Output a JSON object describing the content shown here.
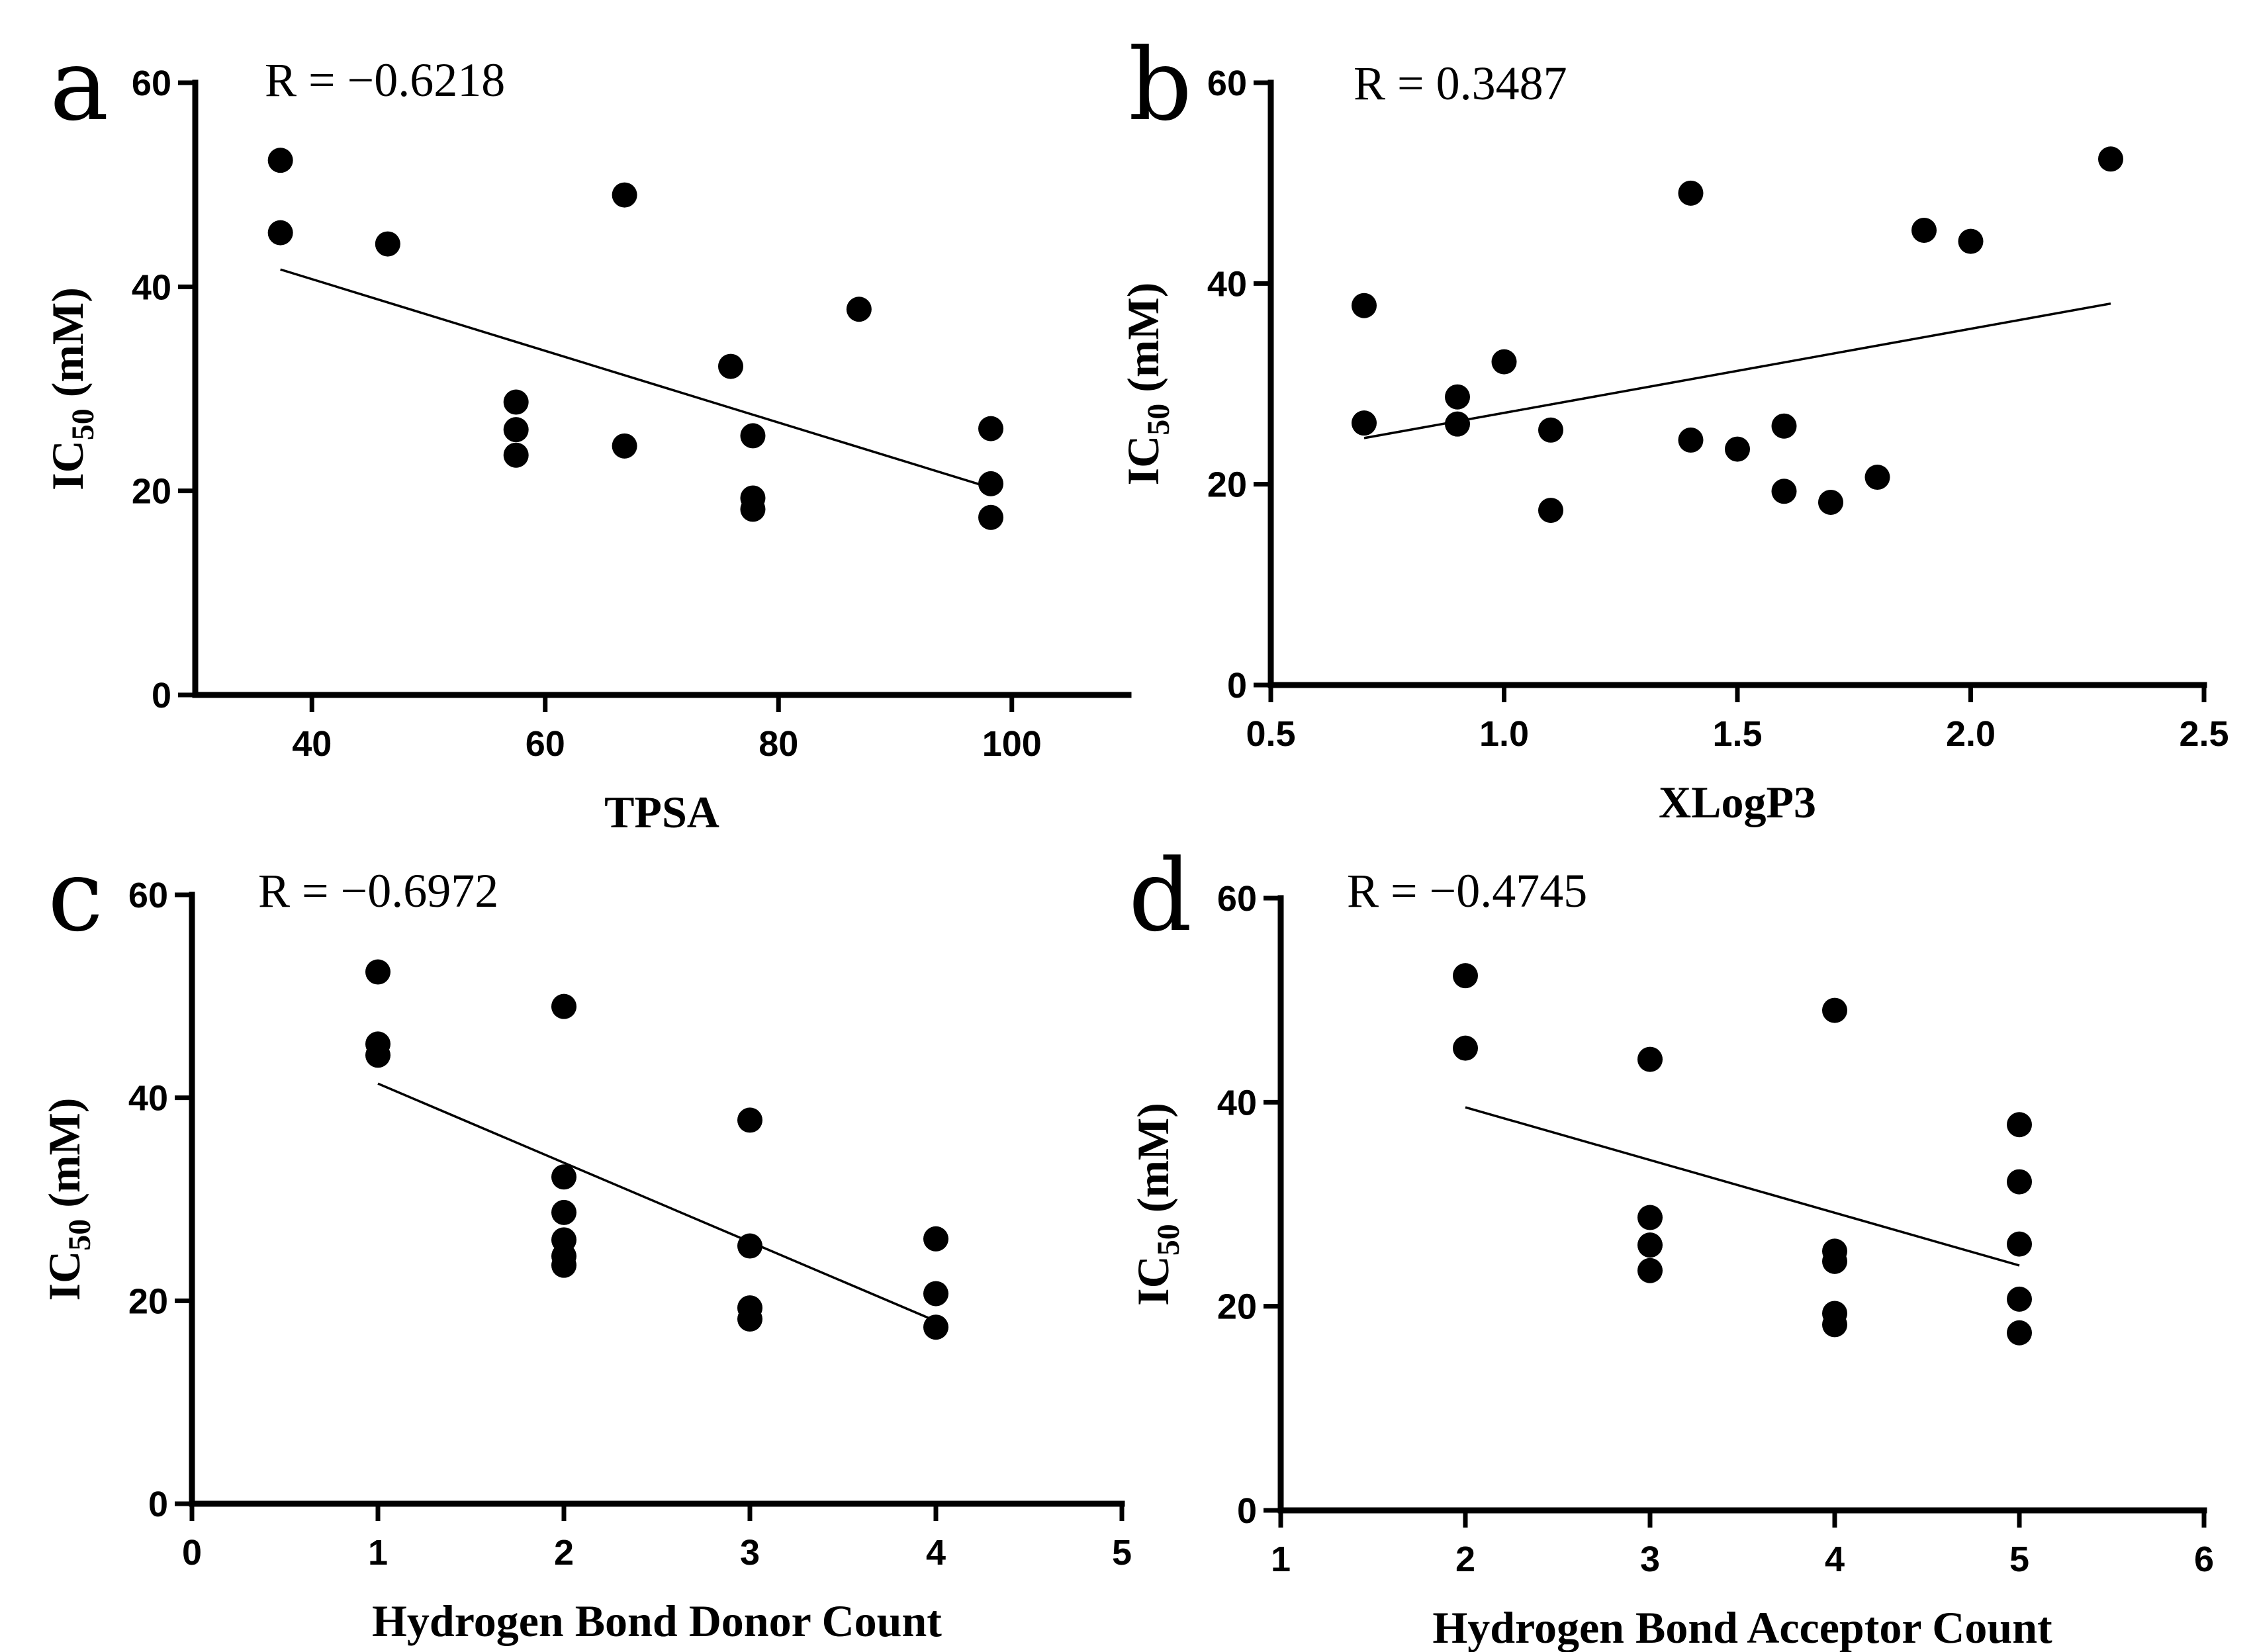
{
  "chart_data": [
    {
      "type": "scatter",
      "panel": "a",
      "annotation": "R = −0.6218",
      "xlabel": "TPSA",
      "ylabel": "IC",
      "ylabel_sub": "50",
      "ylabel_unit": " (mM)",
      "xlim": [
        30,
        110
      ],
      "ylim": [
        0,
        60
      ],
      "xticks": [
        40,
        60,
        80,
        100
      ],
      "xtick_labels": [
        "40",
        "60",
        "80",
        "100"
      ],
      "yticks": [
        0,
        20,
        40,
        60
      ],
      "ytick_labels": [
        "0",
        "20",
        "40",
        "60"
      ],
      "points": [
        [
          37.3,
          52.4
        ],
        [
          37.3,
          45.3
        ],
        [
          46.5,
          44.2
        ],
        [
          57.5,
          28.7
        ],
        [
          57.5,
          26.0
        ],
        [
          57.5,
          23.5
        ],
        [
          66.8,
          49.0
        ],
        [
          66.8,
          24.4
        ],
        [
          75.9,
          32.2
        ],
        [
          77.8,
          25.4
        ],
        [
          77.8,
          19.3
        ],
        [
          77.8,
          18.2
        ],
        [
          86.9,
          37.8
        ],
        [
          98.2,
          26.1
        ],
        [
          98.2,
          20.7
        ],
        [
          98.2,
          17.4
        ]
      ],
      "fit": [
        [
          37.3,
          41.7
        ],
        [
          98.2,
          20.3
        ]
      ]
    },
    {
      "type": "scatter",
      "panel": "b",
      "annotation": "R = 0.3487",
      "xlabel": "XLogP3",
      "ylabel": "IC",
      "ylabel_sub": "50",
      "ylabel_unit": " (mM)",
      "xlim": [
        0.5,
        2.5
      ],
      "ylim": [
        0,
        60
      ],
      "xticks": [
        0.5,
        1.0,
        1.5,
        2.0,
        2.5
      ],
      "xtick_labels": [
        "0.5",
        "1.0",
        "1.5",
        "2.0",
        "2.5"
      ],
      "yticks": [
        0,
        20,
        40,
        60
      ],
      "ytick_labels": [
        "0",
        "20",
        "40",
        "60"
      ],
      "points": [
        [
          0.7,
          37.8
        ],
        [
          0.7,
          26.1
        ],
        [
          0.9,
          28.7
        ],
        [
          0.9,
          26.0
        ],
        [
          1.0,
          32.2
        ],
        [
          1.1,
          25.4
        ],
        [
          1.1,
          17.4
        ],
        [
          1.4,
          49.0
        ],
        [
          1.4,
          24.4
        ],
        [
          1.5,
          23.5
        ],
        [
          1.6,
          25.8
        ],
        [
          1.6,
          19.3
        ],
        [
          1.7,
          18.2
        ],
        [
          1.8,
          20.7
        ],
        [
          1.9,
          45.3
        ],
        [
          2.0,
          44.2
        ],
        [
          2.3,
          52.4
        ]
      ],
      "fit": [
        [
          0.7,
          24.6
        ],
        [
          2.3,
          38.0
        ]
      ]
    },
    {
      "type": "scatter",
      "panel": "c",
      "annotation": "R = −0.6972",
      "xlabel": "Hydrogen Bond Donor Count",
      "ylabel": "IC",
      "ylabel_sub": "50",
      "ylabel_unit": " (mM)",
      "xlim": [
        0,
        5
      ],
      "ylim": [
        0,
        60
      ],
      "xticks": [
        0,
        1,
        2,
        3,
        4,
        5
      ],
      "xtick_labels": [
        "0",
        "1",
        "2",
        "3",
        "4",
        "5"
      ],
      "yticks": [
        0,
        20,
        40,
        60
      ],
      "ytick_labels": [
        "0",
        "20",
        "40",
        "60"
      ],
      "points": [
        [
          1,
          52.4
        ],
        [
          1,
          45.3
        ],
        [
          1,
          44.2
        ],
        [
          2,
          49.0
        ],
        [
          2,
          32.2
        ],
        [
          2,
          28.7
        ],
        [
          2,
          26.0
        ],
        [
          2,
          24.4
        ],
        [
          2,
          23.5
        ],
        [
          3,
          37.8
        ],
        [
          3,
          25.4
        ],
        [
          3,
          19.3
        ],
        [
          3,
          18.2
        ],
        [
          4,
          26.1
        ],
        [
          4,
          20.7
        ],
        [
          4,
          17.4
        ]
      ],
      "fit": [
        [
          1,
          41.4
        ],
        [
          4,
          18.0
        ]
      ]
    },
    {
      "type": "scatter",
      "panel": "d",
      "annotation": "R = −0.4745",
      "xlabel": "Hydrogen Bond Acceptor Count",
      "ylabel": "IC",
      "ylabel_sub": "50",
      "ylabel_unit": " (mM)",
      "xlim": [
        1,
        6
      ],
      "ylim": [
        0,
        60
      ],
      "xticks": [
        1,
        2,
        3,
        4,
        5,
        6
      ],
      "xtick_labels": [
        "1",
        "2",
        "3",
        "4",
        "5",
        "6"
      ],
      "yticks": [
        0,
        20,
        40,
        60
      ],
      "ytick_labels": [
        "0",
        "20",
        "40",
        "60"
      ],
      "points": [
        [
          2,
          52.4
        ],
        [
          2,
          45.3
        ],
        [
          3,
          44.2
        ],
        [
          3,
          28.7
        ],
        [
          3,
          26.0
        ],
        [
          3,
          23.5
        ],
        [
          4,
          49.0
        ],
        [
          4,
          25.4
        ],
        [
          4,
          24.4
        ],
        [
          4,
          19.3
        ],
        [
          4,
          18.2
        ],
        [
          5,
          37.8
        ],
        [
          5,
          32.2
        ],
        [
          5,
          26.1
        ],
        [
          5,
          20.7
        ],
        [
          5,
          17.4
        ]
      ],
      "fit": [
        [
          2,
          39.5
        ],
        [
          5,
          24.0
        ]
      ]
    }
  ]
}
